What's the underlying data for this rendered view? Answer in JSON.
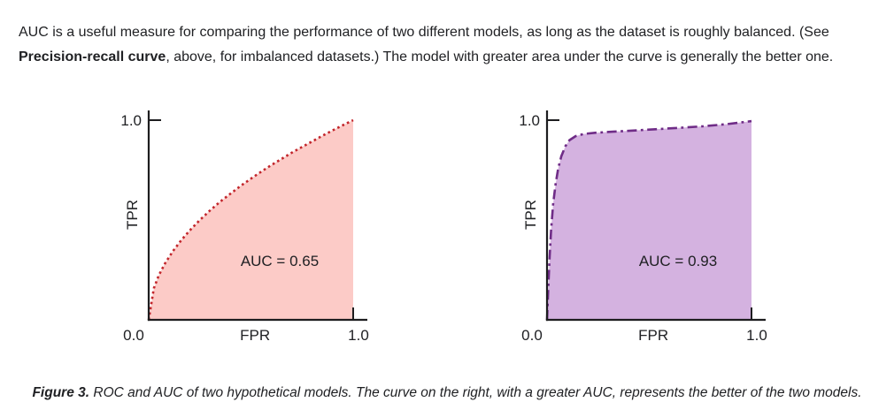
{
  "intro": {
    "line1": "AUC is a useful measure for comparing the performance of two different models, as long as the dataset is roughly balanced. (See",
    "line2_bold": "Precision-recall curve",
    "line2_rest": ", above, for imbalanced datasets.) The model with greater area under the curve is generally the better one."
  },
  "caption": {
    "label": "Figure 3.",
    "text": " ROC and AUC of two hypothetical models. The curve on the right, with a greater AUC, represents the better of the two models."
  },
  "colors": {
    "text": "#202124",
    "axis": "#1d1d1f",
    "model_a_line": "#c2252b",
    "model_a_fill": "#fccbc7",
    "model_b_line": "#6f2c87",
    "model_b_fill": "#d4b2e0"
  },
  "chart_data": [
    {
      "type": "area",
      "name": "roc-model-a",
      "title": "",
      "xlabel": "FPR",
      "ylabel": "TPR",
      "xlim": [
        0,
        1
      ],
      "ylim": [
        0,
        1
      ],
      "x_tick_labels": [
        "0.0",
        "1.0"
      ],
      "y_tick_labels": [
        "1.0"
      ],
      "annotation": "AUC = 0.65",
      "auc": 0.65,
      "line_style": "dotted",
      "line_color": "#c2252b",
      "fill_color": "#fccbc7",
      "points": [
        [
          0,
          0
        ],
        [
          0.025,
          0.158
        ],
        [
          0.05,
          0.224
        ],
        [
          0.08,
          0.283
        ],
        [
          0.12,
          0.346
        ],
        [
          0.16,
          0.4
        ],
        [
          0.2,
          0.447
        ],
        [
          0.25,
          0.5
        ],
        [
          0.3,
          0.548
        ],
        [
          0.35,
          0.592
        ],
        [
          0.4,
          0.632
        ],
        [
          0.45,
          0.671
        ],
        [
          0.5,
          0.707
        ],
        [
          0.55,
          0.742
        ],
        [
          0.6,
          0.775
        ],
        [
          0.65,
          0.806
        ],
        [
          0.7,
          0.837
        ],
        [
          0.75,
          0.866
        ],
        [
          0.8,
          0.894
        ],
        [
          0.85,
          0.922
        ],
        [
          0.9,
          0.949
        ],
        [
          0.95,
          0.975
        ],
        [
          1,
          1
        ]
      ]
    },
    {
      "type": "area",
      "name": "roc-model-b",
      "title": "",
      "xlabel": "FPR",
      "ylabel": "TPR",
      "xlim": [
        0,
        1
      ],
      "ylim": [
        0,
        1
      ],
      "x_tick_labels": [
        "0.0",
        "1.0"
      ],
      "y_tick_labels": [
        "1.0"
      ],
      "annotation": "AUC = 0.93",
      "auc": 0.93,
      "line_style": "dashdot",
      "line_color": "#6f2c87",
      "fill_color": "#d4b2e0",
      "points": [
        [
          0,
          0
        ],
        [
          0.004,
          0.1
        ],
        [
          0.008,
          0.2
        ],
        [
          0.013,
          0.32
        ],
        [
          0.02,
          0.45
        ],
        [
          0.03,
          0.58
        ],
        [
          0.042,
          0.68
        ],
        [
          0.055,
          0.76
        ],
        [
          0.07,
          0.82
        ],
        [
          0.09,
          0.87
        ],
        [
          0.11,
          0.9
        ],
        [
          0.14,
          0.92
        ],
        [
          0.18,
          0.931
        ],
        [
          0.24,
          0.937
        ],
        [
          0.32,
          0.942
        ],
        [
          0.42,
          0.948
        ],
        [
          0.52,
          0.954
        ],
        [
          0.64,
          0.961
        ],
        [
          0.76,
          0.969
        ],
        [
          0.88,
          0.98
        ],
        [
          1,
          0.995
        ]
      ]
    }
  ]
}
